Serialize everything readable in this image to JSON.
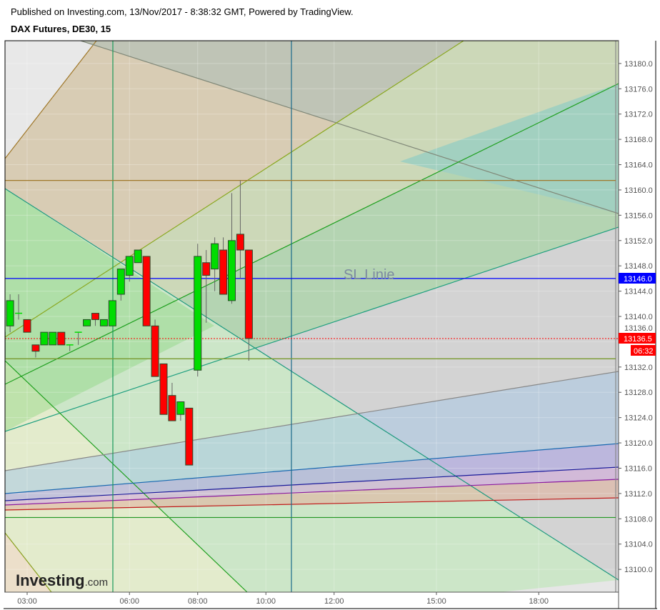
{
  "header": {
    "published": "Published on Investing.com, 13/Nov/2017 - 8:38:32 GMT, Powered by TradingView.",
    "title": "DAX Futures, DE30, 15"
  },
  "logo": "Investing.com",
  "chart_data": {
    "type": "candlestick",
    "title": "DAX Futures, DE30, 15",
    "interval_minutes": 15,
    "ylim": [
      13096.4,
      13183.6
    ],
    "y_ticks": [
      "13100.0",
      "13104.0",
      "13108.0",
      "13112.0",
      "13116.0",
      "13120.0",
      "13124.0",
      "13128.0",
      "13132.0",
      "13136.0",
      "13140.0",
      "13144.0",
      "13148.0",
      "13152.0",
      "13156.0",
      "13160.0",
      "13164.0",
      "13168.0",
      "13172.0",
      "13176.0",
      "13180.0"
    ],
    "x_ticks": [
      "03:00",
      "06:00",
      "08:00",
      "10:00",
      "12:00",
      "15:00",
      "18:00"
    ],
    "grid": true,
    "colors": {
      "up": "#00dd00",
      "down": "#ff0000",
      "last_price": "#ff0000",
      "sl_line": "#0000ff"
    },
    "candles": [
      {
        "t": "02:15",
        "o": 13133.5,
        "h": 13137.5,
        "l": 13133.5,
        "c": 13137.5
      },
      {
        "t": "02:30",
        "o": 13138.5,
        "h": 13143.5,
        "l": 13137.5,
        "c": 13142.5
      },
      {
        "t": "02:45",
        "o": 13140.5,
        "h": 13143.5,
        "l": 13139.5,
        "c": 13140.5
      },
      {
        "t": "03:00",
        "o": 13139.5,
        "h": 13139.5,
        "l": 13137.5,
        "c": 13137.5
      },
      {
        "t": "03:15",
        "o": 13135.5,
        "h": 13135.5,
        "l": 13133.5,
        "c": 13134.5
      },
      {
        "t": "03:30",
        "o": 13135.5,
        "h": 13137.5,
        "l": 13135.5,
        "c": 13137.5
      },
      {
        "t": "03:45",
        "o": 13135.5,
        "h": 13137.5,
        "l": 13135.5,
        "c": 13137.5
      },
      {
        "t": "04:00",
        "o": 13137.5,
        "h": 13137.5,
        "l": 13135.5,
        "c": 13135.5
      },
      {
        "t": "04:15",
        "o": 13135.5,
        "h": 13135.5,
        "l": 13134.5,
        "c": 13135.5
      },
      {
        "t": "04:30",
        "o": 13137.5,
        "h": 13137.5,
        "l": 13135.5,
        "c": 13137.5
      },
      {
        "t": "04:45",
        "o": 13138.5,
        "h": 13139.5,
        "l": 13138.5,
        "c": 13139.5
      },
      {
        "t": "05:00",
        "o": 13140.5,
        "h": 13140.5,
        "l": 13138.5,
        "c": 13139.5
      },
      {
        "t": "05:15",
        "o": 13138.5,
        "h": 13139.5,
        "l": 13138.5,
        "c": 13139.5
      },
      {
        "t": "05:30",
        "o": 13138.5,
        "h": 13142.5,
        "l": 13138.5,
        "c": 13142.5
      },
      {
        "t": "05:45",
        "o": 13143.5,
        "h": 13147.5,
        "l": 13142.5,
        "c": 13147.5
      },
      {
        "t": "06:00",
        "o": 13146.5,
        "h": 13149.5,
        "l": 13145.5,
        "c": 13149.5
      },
      {
        "t": "06:15",
        "o": 13148.5,
        "h": 13150.5,
        "l": 13148.5,
        "c": 13150.5
      },
      {
        "t": "06:30",
        "o": 13149.5,
        "h": 13149.5,
        "l": 13138.5,
        "c": 13138.5
      },
      {
        "t": "06:45",
        "o": 13138.5,
        "h": 13139.5,
        "l": 13130.5,
        "c": 13130.5
      },
      {
        "t": "07:00",
        "o": 13132.5,
        "h": 13132.5,
        "l": 13124.5,
        "c": 13124.5
      },
      {
        "t": "07:15",
        "o": 13127.5,
        "h": 13129.5,
        "l": 13123.5,
        "c": 13123.5
      },
      {
        "t": "07:30",
        "o": 13124.5,
        "h": 13126.5,
        "l": 13123.5,
        "c": 13126.5
      },
      {
        "t": "07:45",
        "o": 13125.5,
        "h": 13125.5,
        "l": 13116.5,
        "c": 13116.5
      },
      {
        "t": "08:00",
        "o": 13131.5,
        "h": 13151.5,
        "l": 13130.5,
        "c": 13149.5
      },
      {
        "t": "08:15",
        "o": 13148.5,
        "h": 13150.5,
        "l": 13139.0,
        "c": 13146.5
      },
      {
        "t": "08:30",
        "o": 13147.5,
        "h": 13152.5,
        "l": 13144.0,
        "c": 13151.5
      },
      {
        "t": "08:45",
        "o": 13150.5,
        "h": 13152.5,
        "l": 13143.5,
        "c": 13143.5
      },
      {
        "t": "09:00",
        "o": 13142.5,
        "h": 13159.5,
        "l": 13142.0,
        "c": 13152.0
      },
      {
        "t": "09:15",
        "o": 13153.0,
        "h": 13161.5,
        "l": 13146.0,
        "c": 13150.5
      },
      {
        "t": "09:30",
        "o": 13150.5,
        "h": 13150.5,
        "l": 13133.0,
        "c": 13136.5
      }
    ],
    "horizontal_lines": [
      {
        "price": 13161.5,
        "color": "#a0782a"
      },
      {
        "price": 13146.0,
        "color": "#0000ff",
        "label": "SL Linie"
      },
      {
        "price": 13133.3,
        "color": "#7a9a30"
      },
      {
        "price": 13108.2,
        "color": "#2a9a2a"
      }
    ],
    "last_price": {
      "value": "13136.5",
      "countdown": "06:32"
    },
    "sl_label": {
      "value": "13146.0"
    }
  }
}
